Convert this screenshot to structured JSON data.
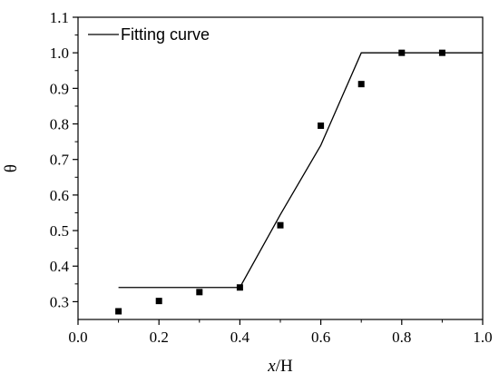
{
  "chart_data": {
    "type": "scatter",
    "title": "",
    "xlabel": "",
    "xlabel_parts": {
      "italic": "x",
      "rest": "/H"
    },
    "ylabel": "θ",
    "xlim": [
      0.0,
      1.0
    ],
    "ylim": [
      0.25,
      1.1
    ],
    "x_ticks": [
      0.0,
      0.2,
      0.4,
      0.6,
      0.8,
      1.0
    ],
    "x_tick_labels": [
      "0.0",
      "0.2",
      "0.4",
      "0.6",
      "0.8",
      "1.0"
    ],
    "x_minor_ticks": [
      0.1,
      0.3,
      0.5,
      0.7,
      0.9
    ],
    "y_ticks": [
      0.3,
      0.4,
      0.5,
      0.6,
      0.7,
      0.8,
      0.9,
      1.0,
      1.1
    ],
    "y_tick_labels": [
      "0.3",
      "0.4",
      "0.5",
      "0.6",
      "0.7",
      "0.8",
      "0.9",
      "1.0",
      "1.1"
    ],
    "y_minor_ticks": [
      0.35,
      0.45,
      0.55,
      0.65,
      0.75,
      0.85,
      0.95,
      1.05
    ],
    "grid": false,
    "legend_position": "top-left",
    "series": [
      {
        "name": "",
        "kind": "scatter",
        "marker": "square",
        "color": "#000000",
        "x": [
          0.1,
          0.2,
          0.3,
          0.4,
          0.5,
          0.6,
          0.7,
          0.8,
          0.9
        ],
        "y": [
          0.273,
          0.302,
          0.327,
          0.34,
          0.515,
          0.795,
          0.912,
          1.0,
          1.0
        ]
      },
      {
        "name": "Fitting curve",
        "kind": "line",
        "color": "#000000",
        "x": [
          0.1,
          0.4,
          0.5,
          0.6,
          0.7,
          1.0
        ],
        "y": [
          0.34,
          0.34,
          0.545,
          0.74,
          1.0,
          1.0
        ]
      }
    ]
  }
}
